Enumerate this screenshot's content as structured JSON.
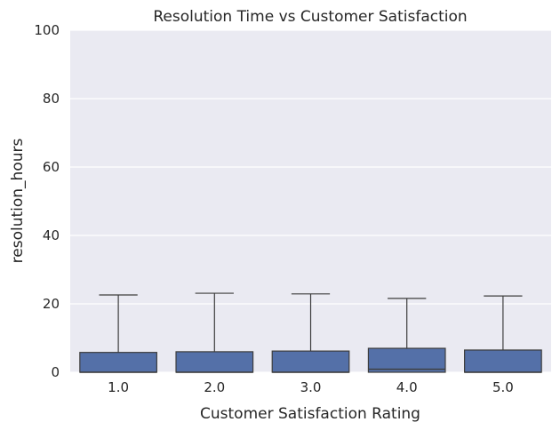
{
  "chart_data": {
    "type": "box",
    "title": "Resolution Time vs Customer Satisfaction",
    "xlabel": "Customer Satisfaction Rating",
    "ylabel": "resolution_hours",
    "ylim": [
      0,
      100
    ],
    "yticks": [
      0,
      20,
      40,
      60,
      80,
      100
    ],
    "grid": true,
    "categories": [
      "1.0",
      "2.0",
      "3.0",
      "4.0",
      "5.0"
    ],
    "boxes": [
      {
        "category": "1.0",
        "min": 0,
        "q1": 0,
        "median": 0,
        "q3": 5.8,
        "max": 22.6
      },
      {
        "category": "2.0",
        "min": 0,
        "q1": 0,
        "median": 0,
        "q3": 6.0,
        "max": 23.1
      },
      {
        "category": "3.0",
        "min": 0,
        "q1": 0,
        "median": 0,
        "q3": 6.2,
        "max": 22.9
      },
      {
        "category": "4.0",
        "min": 0,
        "q1": 0,
        "median": 0.9,
        "q3": 7.0,
        "max": 21.6
      },
      {
        "category": "5.0",
        "min": 0,
        "q1": 0,
        "median": 0,
        "q3": 6.5,
        "max": 22.3
      }
    ],
    "colors": {
      "box_fill": "#5470A8",
      "box_edge": "#3D3D3D",
      "plot_background": "#EAEAF2",
      "grid": "#FFFFFF"
    }
  }
}
